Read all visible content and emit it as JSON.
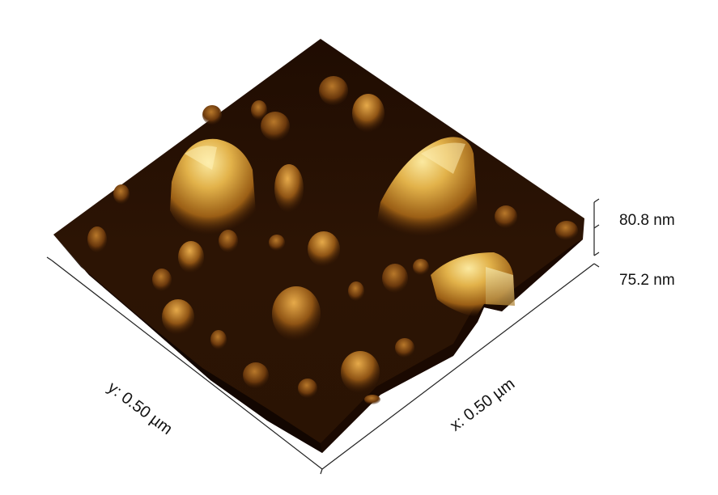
{
  "z_scale": {
    "top": "80.8 nm",
    "bottom": "75.2 nm"
  },
  "axes": {
    "y_label": "y: 0.50 µm",
    "x_label": "x: 0.50 µm"
  },
  "colors": {
    "surface_dark": "#1e0c02",
    "surface_mid": "#6b3a0c",
    "peak_light": "#f3dc7a",
    "axis_line": "#222222"
  }
}
